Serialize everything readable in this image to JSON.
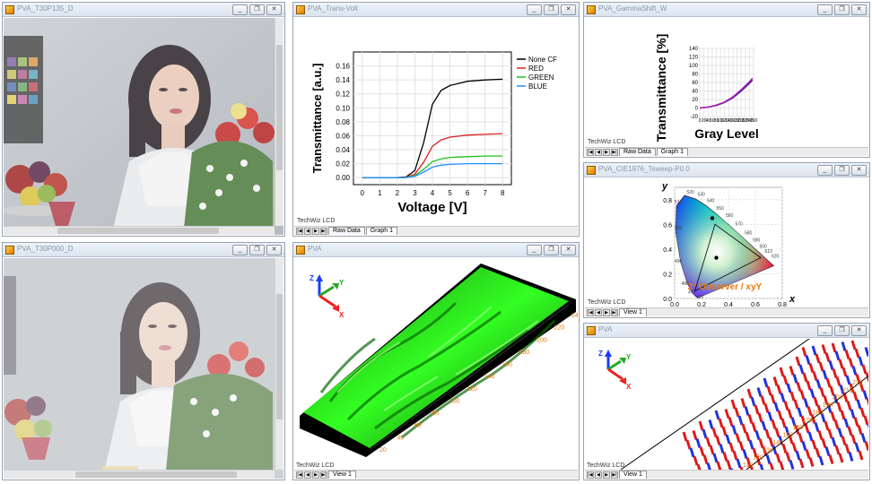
{
  "windows": {
    "photo_top": {
      "title": "PVA_T30P135_D"
    },
    "photo_bottom": {
      "title": "PVA_T30P000_D"
    },
    "trans_volt": {
      "title": "PVA_Trans-Volt",
      "status": "TechWiz LCD",
      "tabs": [
        "Raw Data",
        "Graph 1"
      ]
    },
    "gamma": {
      "title": "PVA_GammaShift_W",
      "status": "TechWiz LCD",
      "tabs": [
        "Raw Data",
        "Graph 1"
      ]
    },
    "cie": {
      "title": "PVA_CIE1976_Tsweep-P0.0",
      "status": "TechWiz LCD",
      "tabs": [
        "View 1"
      ]
    },
    "pva3d": {
      "title": "PVA",
      "status": "TechWiz LCD",
      "tabs": [
        "View 1"
      ]
    },
    "pvavec": {
      "title": "PVA",
      "status": "TechWiz LCD",
      "tabs": [
        "View 1"
      ]
    }
  },
  "window_buttons": {
    "minimize": "_",
    "restore": "❐",
    "close": "✕"
  },
  "nav_buttons": [
    "|◀",
    "◀",
    "▶",
    "▶|"
  ],
  "chart_data": [
    {
      "type": "line",
      "xlabel": "Voltage [V]",
      "ylabel": "Transmittance [a.u.]",
      "xlim": [
        -0.5,
        8.5
      ],
      "ylim": [
        -0.01,
        0.18
      ],
      "xticks": [
        0,
        1,
        2,
        3,
        4,
        5,
        6,
        7,
        8
      ],
      "yticks": [
        0.0,
        0.02,
        0.04,
        0.06,
        0.08,
        0.1,
        0.12,
        0.14,
        0.16
      ],
      "ytick_labels": [
        "0.00",
        "0.02",
        "0.04",
        "0.06",
        "0.08",
        "0.10",
        "0.12",
        "0.14",
        "0.16"
      ],
      "legend": "top-right",
      "grid": true,
      "x": [
        0,
        1,
        2,
        2.5,
        3,
        3.5,
        4,
        4.5,
        5,
        6,
        7,
        8
      ],
      "series": [
        {
          "name": "None CF",
          "color": "#000000",
          "values": [
            0,
            0,
            0,
            0.001,
            0.01,
            0.05,
            0.105,
            0.125,
            0.132,
            0.138,
            0.14,
            0.141
          ]
        },
        {
          "name": "RED",
          "color": "#e02020",
          "values": [
            0,
            0,
            0,
            0.0005,
            0.005,
            0.022,
            0.045,
            0.054,
            0.058,
            0.061,
            0.062,
            0.063
          ]
        },
        {
          "name": "GREEN",
          "color": "#20c020",
          "values": [
            0,
            0,
            0,
            0.0003,
            0.003,
            0.012,
            0.023,
            0.027,
            0.029,
            0.03,
            0.031,
            0.031
          ]
        },
        {
          "name": "BLUE",
          "color": "#2090ff",
          "values": [
            0,
            0,
            0,
            0.0002,
            0.002,
            0.008,
            0.015,
            0.018,
            0.019,
            0.02,
            0.02,
            0.02
          ]
        }
      ]
    },
    {
      "type": "line",
      "xlabel": "Gray Level",
      "ylabel": "Transmittance [%]",
      "ylim": [
        -20,
        140
      ],
      "yticks": [
        -20,
        0,
        20,
        40,
        60,
        80,
        100,
        120,
        140
      ],
      "xticks": [
        0,
        20,
        40,
        60,
        80,
        100,
        120,
        140,
        160,
        180,
        200,
        220,
        240,
        260
      ],
      "grid": true,
      "x": [
        0,
        40,
        80,
        120,
        160,
        200,
        240,
        255
      ],
      "series": [
        {
          "color": "#3b1fa0",
          "values": [
            0,
            2,
            6,
            13,
            24,
            40,
            58,
            66
          ]
        },
        {
          "color": "#b020b0",
          "values": [
            0,
            2,
            7,
            14,
            26,
            43,
            62,
            70
          ]
        }
      ]
    },
    {
      "type": "scatter",
      "xlabel": "x",
      "ylabel": "y",
      "xlim": [
        0,
        0.8
      ],
      "ylim": [
        0,
        0.9
      ],
      "xticks": [
        0.0,
        0.2,
        0.4,
        0.6,
        0.8
      ],
      "xtick_labels": [
        "0.0",
        "0.2",
        "0.4",
        "0.6",
        "0.8"
      ],
      "yticks": [
        0.0,
        0.2,
        0.4,
        0.6,
        0.8
      ],
      "ytick_labels": [
        "0.0",
        "0.2",
        "0.4",
        "0.6",
        "0.8"
      ],
      "annotation": "2° Observer / xyY",
      "wavelength_labels": [
        "520",
        "530",
        "540",
        "550",
        "560",
        "570",
        "580",
        "590",
        "600",
        "610",
        "620",
        "510",
        "500",
        "490",
        "480",
        "470",
        "460"
      ],
      "points": [
        {
          "x": 0.31,
          "y": 0.33
        },
        {
          "x": 0.28,
          "y": 0.65
        }
      ],
      "triangle": [
        {
          "x": 0.64,
          "y": 0.33
        },
        {
          "x": 0.3,
          "y": 0.6
        },
        {
          "x": 0.15,
          "y": 0.06
        }
      ]
    }
  ],
  "pva3d": {
    "axis_labels": {
      "x": "X",
      "y": "Y",
      "z": "Z"
    },
    "tick_labels": [
      "20",
      "40",
      "60",
      "80",
      "100",
      "120",
      "140",
      "160",
      "180",
      "200",
      "220",
      "240"
    ],
    "surface_color": "#33ff22"
  },
  "pvavec": {
    "axis_labels": {
      "x": "X",
      "y": "Y",
      "z": "Z"
    },
    "tick_labels": [
      "110",
      "120",
      "130",
      "140",
      "150",
      "160",
      "170",
      "180",
      "190",
      "200",
      "210",
      "220"
    ]
  }
}
